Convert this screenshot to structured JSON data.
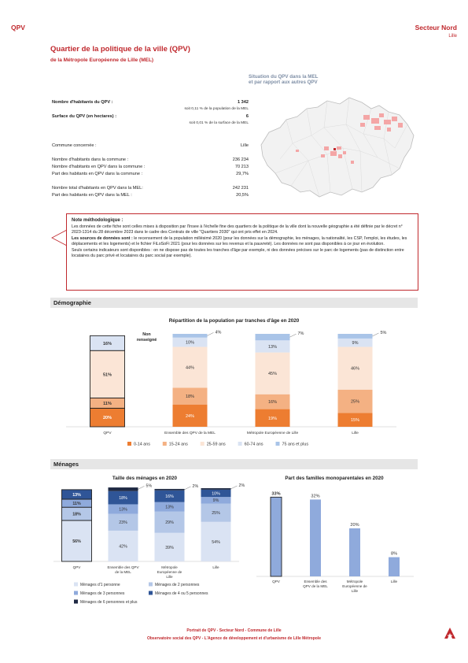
{
  "header": {
    "left": "QPV",
    "right": "Secteur Nord",
    "sub": "Lille"
  },
  "title": "Quartier de la politique de la ville (QPV)",
  "subtitle": "de la Métropole Européenne de Lille (MEL)",
  "facts": {
    "inhabitants_label": "Nombre d'habitants du QPV :",
    "inhabitants_value": "1 342",
    "inhabitants_note": "soit 0,11 % de la population de la MEL",
    "surface_label": "Surface du QPV (en hectares) :",
    "surface_value": "6",
    "surface_note": "soit 0,01 % de la surface de la MEL",
    "commune_label": "Commune concernée :",
    "commune_value": "Lille",
    "commune_pop_label": "Nombre d'habitants dans la commune :",
    "commune_pop_value": "236 234",
    "commune_qpv_label": "Nombre d'habitants en QPV dans la commune :",
    "commune_qpv_value": "70 213",
    "commune_share_label": "Part des habitants en QPV dans la commune :",
    "commune_share_value": "29,7%",
    "mel_total_label": "Nombre total d'habitants en QPV dans la MEL:",
    "mel_total_value": "242 231",
    "mel_share_label": "Part des habitants en QPV dans la MEL :",
    "mel_share_value": "20,5%"
  },
  "map": {
    "title_line1": "Situation du QPV dans la MEL",
    "title_line2": "et par rapport aux autres QPV"
  },
  "note": {
    "title": "Note méthodologique :",
    "p1": "Les données de cette fiche sont celles mises à disposition par l'Insee à l'échelle fine des quartiers de la politique de la ville dont la nouvelle géographie a été définie par le décret n° 2023-1314 du 28 décembre 2023 dans le cadre des Contrats de ville \"Quartiers 2030\" qui ont pris effet en 2024.",
    "p2_bold": "Les sources de données sont :",
    "p2": " le recensement de la population millésimé 2020 (pour les données sur la démographie, les ménages, la nationalité, les CSP, l'emploi, les études, les déplacements et les logements) et le fichier FiLoSoFi 2021 (pour les données sur les revenus et la pauvreté). Les données ne sont pas disponibles à ce jour en évolution.",
    "p3": "Seuls certains indicateurs sont disponibles : on ne dispose pas de toutes les tranches d'âge par exemple, ni des données précises sur le parc de logements (pas de distinction entre locataires du parc privé et locataires du parc social par exemple)."
  },
  "sections": {
    "demo": "Démographie",
    "menages": "Ménages"
  },
  "chart_data": [
    {
      "type": "bar",
      "stacked": true,
      "title": "Répartition de la population par tranches d'âge en 2020",
      "categories": [
        "QPV",
        "Ensemble des QPV de la MEL",
        "Métropole Européenne de Lille",
        "Lille"
      ],
      "series": [
        {
          "name": "0-14 ans",
          "color": "#ed7d31",
          "values": [
            20,
            24,
            19,
            15
          ]
        },
        {
          "name": "15-24 ans",
          "color": "#f4b183",
          "values": [
            11,
            18,
            16,
            25
          ]
        },
        {
          "name": "25-59 ans",
          "color": "#fbe5d6",
          "values": [
            51,
            44,
            45,
            46
          ]
        },
        {
          "name": "60-74 ans",
          "color": "#dae3f3",
          "values": [
            16,
            10,
            13,
            9
          ]
        },
        {
          "name": "75 ans et plus",
          "color": "#a9c4e8",
          "values": [
            null,
            4,
            7,
            5
          ]
        }
      ],
      "annotation": "Non renseigné",
      "ylim": [
        0,
        100
      ]
    },
    {
      "type": "bar",
      "stacked": true,
      "title": "Taille des ménages en 2020",
      "categories": [
        "QPV",
        "Ensemble des QPV de la MEL",
        "Métropole Européenne de Lille",
        "Lille"
      ],
      "series": [
        {
          "name": "Ménages d'1 personne",
          "color": "#dae3f3",
          "values": [
            56,
            42,
            39,
            54
          ]
        },
        {
          "name": "Ménages de 2 personnes",
          "color": "#b4c7e7",
          "values": [
            18,
            23,
            29,
            25
          ]
        },
        {
          "name": "Ménages de 3 personnes",
          "color": "#8faadc",
          "values": [
            11,
            13,
            13,
            9
          ]
        },
        {
          "name": "Ménages de 4 ou 5 personnes",
          "color": "#2f5597",
          "values": [
            13,
            18,
            16,
            10
          ]
        },
        {
          "name": "Ménages de 6 personnes et plus",
          "color": "#1f2a44",
          "values": [
            null,
            5,
            2,
            2
          ]
        }
      ],
      "ylim": [
        0,
        100
      ]
    },
    {
      "type": "bar",
      "title": "Part des familles monoparentales en 2020",
      "categories": [
        "QPV",
        "Ensemble des QPV de la MEL",
        "Métropole Européenne de Lille",
        "Lille"
      ],
      "values": [
        33,
        32,
        20,
        8
      ],
      "labels": [
        "33%",
        "32%",
        "20%",
        "8%"
      ],
      "color": "#8faadc",
      "ylim": [
        0,
        36
      ]
    }
  ],
  "footer": {
    "line1": "Portrait de QPV - Secteur Nord - Commune de Lille",
    "line2": "Observatoire social des QPV - L'Agence de développement et d'urbanisme de Lille Métropole"
  }
}
